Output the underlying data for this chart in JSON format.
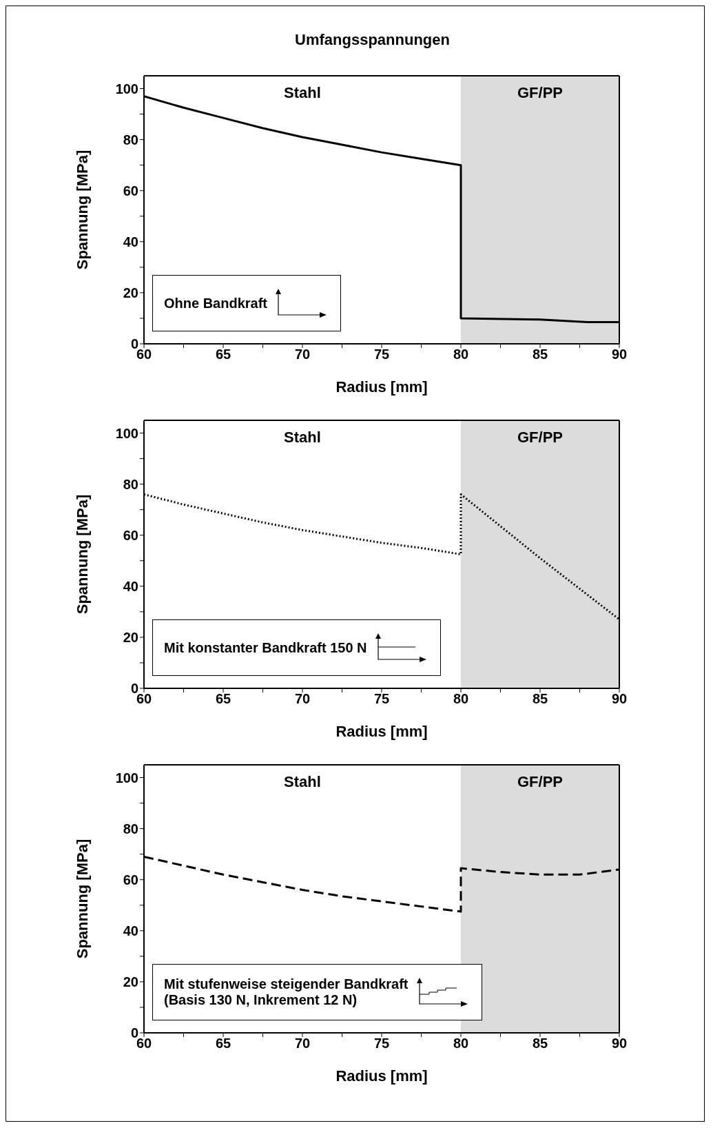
{
  "chart_data": [
    {
      "type": "line",
      "title": "Umfangsspannungen",
      "xlabel": "Radius [mm]",
      "ylabel": "Spannung [MPa]",
      "xlim": [
        60,
        90
      ],
      "ylim": [
        0,
        105
      ],
      "xticks": [
        60,
        {
          "value": 62.5,
          "label": null
        },
        65,
        {
          "value": 67.5,
          "label": null
        },
        70,
        {
          "value": 72.5,
          "label": null
        },
        75,
        {
          "value": 77.5,
          "label": null
        },
        80,
        {
          "value": 82.5,
          "label": null
        },
        85,
        {
          "value": 87.5,
          "label": null
        },
        90
      ],
      "yticks": [
        0,
        {
          "value": 10,
          "label": null
        },
        20,
        {
          "value": 30,
          "label": null
        },
        40,
        {
          "value": 50,
          "label": null
        },
        60,
        {
          "value": 70,
          "label": null
        },
        80,
        {
          "value": 90,
          "label": null
        },
        100
      ],
      "bands": [
        {
          "axis": "x",
          "from": 80,
          "to": 90,
          "label": "GF/PP",
          "color": "#dcdcdc"
        }
      ],
      "series": [
        {
          "color": "#000000",
          "line_style": "solid",
          "x": [
            60,
            62.5,
            65,
            67.5,
            70,
            72.5,
            75,
            77.5,
            80,
            80,
            85,
            88,
            90
          ],
          "values": [
            97,
            92.5,
            88.5,
            84.5,
            81,
            78,
            75,
            72.5,
            70,
            10,
            9.5,
            8.5,
            8.5
          ]
        }
      ],
      "annotations": [
        "Stahl",
        "Ohne Bandkraft"
      ],
      "legend": false,
      "grid": false,
      "marker": "none"
    },
    {
      "type": "line",
      "xlabel": "Radius [mm]",
      "ylabel": "Spannung [MPa]",
      "xlim": [
        60,
        90
      ],
      "ylim": [
        0,
        105
      ],
      "xticks": [
        60,
        {
          "value": 62.5,
          "label": null
        },
        65,
        {
          "value": 67.5,
          "label": null
        },
        70,
        {
          "value": 72.5,
          "label": null
        },
        75,
        {
          "value": 77.5,
          "label": null
        },
        80,
        {
          "value": 82.5,
          "label": null
        },
        85,
        {
          "value": 87.5,
          "label": null
        },
        90
      ],
      "yticks": [
        0,
        {
          "value": 10,
          "label": null
        },
        20,
        {
          "value": 30,
          "label": null
        },
        40,
        {
          "value": 50,
          "label": null
        },
        60,
        {
          "value": 70,
          "label": null
        },
        80,
        {
          "value": 90,
          "label": null
        },
        100
      ],
      "bands": [
        {
          "axis": "x",
          "from": 80,
          "to": 90,
          "label": "GF/PP",
          "color": "#dcdcdc"
        }
      ],
      "series": [
        {
          "color": "#000000",
          "line_style": "dotted",
          "x": [
            60,
            62.5,
            65,
            67.5,
            70,
            72.5,
            75,
            77.5,
            80,
            80,
            82.5,
            85,
            87.5,
            90
          ],
          "values": [
            76,
            72,
            68.5,
            65,
            62,
            59.5,
            57,
            55,
            52.5,
            76,
            63.5,
            51,
            39,
            27
          ]
        }
      ],
      "annotations": [
        "Stahl",
        "Mit konstanter Bandkraft 150 N"
      ],
      "legend": false,
      "grid": false,
      "marker": "none"
    },
    {
      "type": "line",
      "xlabel": "Radius [mm]",
      "ylabel": "Spannung [MPa]",
      "xlim": [
        60,
        90
      ],
      "ylim": [
        0,
        105
      ],
      "xticks": [
        60,
        {
          "value": 62.5,
          "label": null
        },
        65,
        {
          "value": 67.5,
          "label": null
        },
        70,
        {
          "value": 72.5,
          "label": null
        },
        75,
        {
          "value": 77.5,
          "label": null
        },
        80,
        {
          "value": 82.5,
          "label": null
        },
        85,
        {
          "value": 87.5,
          "label": null
        },
        90
      ],
      "yticks": [
        0,
        {
          "value": 10,
          "label": null
        },
        20,
        {
          "value": 30,
          "label": null
        },
        40,
        {
          "value": 50,
          "label": null
        },
        60,
        {
          "value": 70,
          "label": null
        },
        80,
        {
          "value": 90,
          "label": null
        },
        100
      ],
      "bands": [
        {
          "axis": "x",
          "from": 80,
          "to": 90,
          "label": "GF/PP",
          "color": "#dcdcdc"
        }
      ],
      "series": [
        {
          "color": "#000000",
          "line_style": "dashed",
          "x": [
            60,
            62.5,
            65,
            67.5,
            70,
            72.5,
            75,
            77.5,
            80,
            80,
            82.5,
            85,
            87.5,
            90
          ],
          "values": [
            69,
            65.5,
            62,
            59,
            56,
            53.5,
            51.5,
            49.5,
            47.5,
            64.5,
            63,
            62,
            62,
            64
          ]
        }
      ],
      "annotations": [
        "Stahl",
        "Mit stufenweise steigender Bandkraft\n(Basis 130 N, Inkrement 12 N)"
      ],
      "legend": false,
      "grid": false,
      "marker": "none"
    }
  ]
}
